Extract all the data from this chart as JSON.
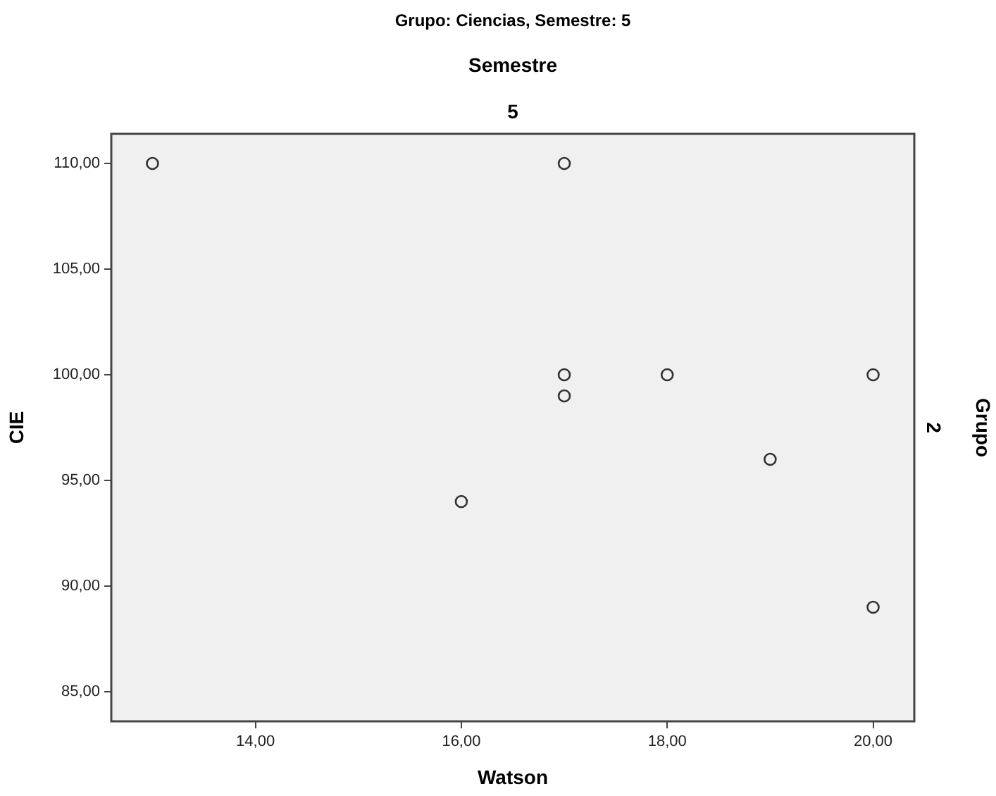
{
  "chart_data": {
    "type": "scatter",
    "title": "Grupo: Ciencias, Semestre: 5",
    "xlabel": "Watson",
    "ylabel": "CIE",
    "annotations": [
      "Semestre",
      "5",
      "Grupo",
      "2"
    ],
    "x": [
      13,
      17,
      17,
      17,
      18,
      20,
      19,
      16,
      20
    ],
    "series": [
      {
        "color": "#333333",
        "values": [
          110,
          110,
          100,
          99,
          100,
          100,
          96,
          94,
          89
        ]
      }
    ],
    "marker": "circle",
    "grid": false,
    "legend": false,
    "xlim": [
      12.6,
      20.4
    ],
    "ylim": [
      83.6,
      111.4
    ],
    "xticks": [
      {
        "value": 14,
        "label": "14,00"
      },
      {
        "value": 16,
        "label": "16,00"
      },
      {
        "value": 18,
        "label": "18,00"
      },
      {
        "value": 20,
        "label": "20,00"
      }
    ],
    "yticks": [
      {
        "value": 85,
        "label": "85,00"
      },
      {
        "value": 90,
        "label": "90,00"
      },
      {
        "value": 95,
        "label": "95,00"
      },
      {
        "value": 100,
        "label": "100,00"
      },
      {
        "value": 105,
        "label": "105,00"
      },
      {
        "value": 110,
        "label": "110,00"
      }
    ]
  }
}
